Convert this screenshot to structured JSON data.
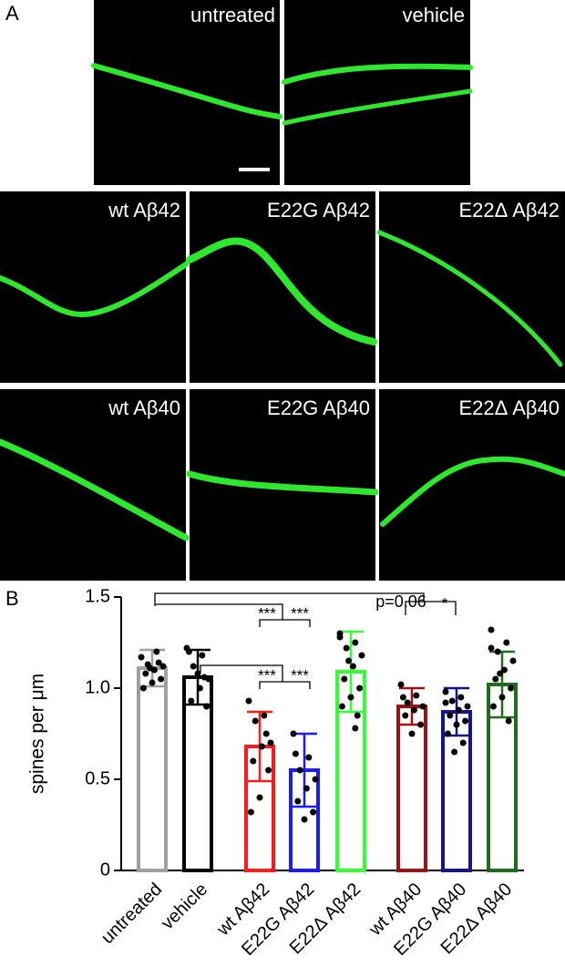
{
  "panels": {
    "a": "A",
    "b": "B"
  },
  "images": [
    "untreated",
    "vehicle",
    "wt Aβ42",
    "E22G Aβ42",
    "E22Δ Aβ42",
    "wt Aβ40",
    "E22G Aβ40",
    "E22Δ Aβ40"
  ],
  "chart_data": {
    "type": "bar",
    "ylabel": "spines per μm",
    "categories": [
      "untreated",
      "vehicle",
      "wt Aβ42",
      "E22G Aβ42",
      "E22Δ Aβ42",
      "wt Aβ40",
      "E22G Aβ40",
      "E22Δ Aβ40"
    ],
    "values": [
      1.11,
      1.06,
      0.68,
      0.55,
      1.09,
      0.9,
      0.87,
      1.02
    ],
    "errors": [
      0.1,
      0.15,
      0.19,
      0.2,
      0.22,
      0.1,
      0.13,
      0.18
    ],
    "colors": [
      "#a0a0a0",
      "#000000",
      "#ff1a1a",
      "#1a1aff",
      "#33ff33",
      "#a01010",
      "#14148c",
      "#1e6e1e"
    ],
    "points": [
      [
        1.17,
        1.2,
        1.13,
        1.12,
        1.1,
        1.08,
        1.05,
        1.03,
        1.0,
        1.14,
        1.11
      ],
      [
        1.22,
        1.18,
        1.12,
        1.05,
        1.0,
        0.93,
        0.9,
        1.08,
        1.2,
        1.06
      ],
      [
        0.93,
        0.85,
        0.82,
        0.7,
        0.68,
        0.6,
        0.55,
        0.4,
        0.32,
        0.75
      ],
      [
        0.75,
        0.62,
        0.55,
        0.5,
        0.45,
        0.38,
        0.32,
        0.28,
        0.64
      ],
      [
        1.3,
        1.25,
        1.22,
        1.18,
        1.12,
        1.05,
        1.0,
        0.95,
        0.9,
        0.85,
        1.15,
        1.28,
        0.78
      ],
      [
        1.02,
        0.96,
        0.92,
        0.9,
        0.88,
        0.85,
        0.8,
        0.75,
        0.95
      ],
      [
        0.98,
        0.95,
        0.93,
        0.9,
        0.88,
        0.85,
        0.82,
        0.8,
        0.75,
        0.7,
        0.65,
        0.92
      ],
      [
        1.32,
        1.25,
        1.2,
        1.15,
        1.1,
        1.05,
        1.0,
        0.95,
        0.9,
        0.82,
        1.08,
        1.22
      ]
    ],
    "ylim": [
      0,
      1.5
    ],
    "yticks": [
      0,
      0.5,
      {
        "value": 1,
        "label": "1.0"
      },
      1.5
    ],
    "annotations": [
      "***",
      "***",
      "***",
      "***",
      "p=0.06",
      "*"
    ]
  }
}
